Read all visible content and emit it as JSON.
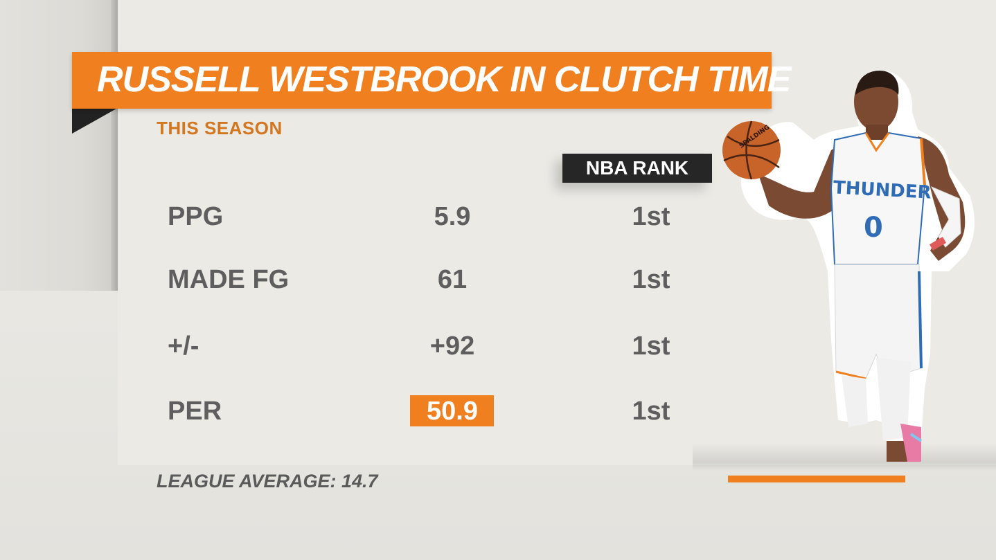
{
  "graphic": {
    "title": "RUSSELL WESTBROOK IN CLUTCH TIME",
    "subtitle": "THIS SEASON",
    "rank_header": "NBA RANK",
    "stats": [
      {
        "label": "PPG",
        "value": "5.9",
        "rank": "1st",
        "highlighted": false
      },
      {
        "label": "MADE FG",
        "value": "61",
        "rank": "1st",
        "highlighted": false
      },
      {
        "label": "+/-",
        "value": "+92",
        "rank": "1st",
        "highlighted": false
      },
      {
        "label": "PER",
        "value": "50.9",
        "rank": "1st",
        "highlighted": true
      }
    ],
    "footnote": "LEAGUE AVERAGE: 14.7"
  },
  "player_image": {
    "icon": "basketball-player-photo",
    "jersey_text": "THUNDER",
    "jersey_number": "0",
    "ball_text": "SPALDING"
  },
  "colors": {
    "accent_orange": "#f07f1f",
    "subtitle_orange": "#d2761f",
    "stat_text": "#5e5e5e",
    "dark_tag": "#262626",
    "background": "#ebeae5",
    "thunder_blue": "#2f6cb5"
  }
}
